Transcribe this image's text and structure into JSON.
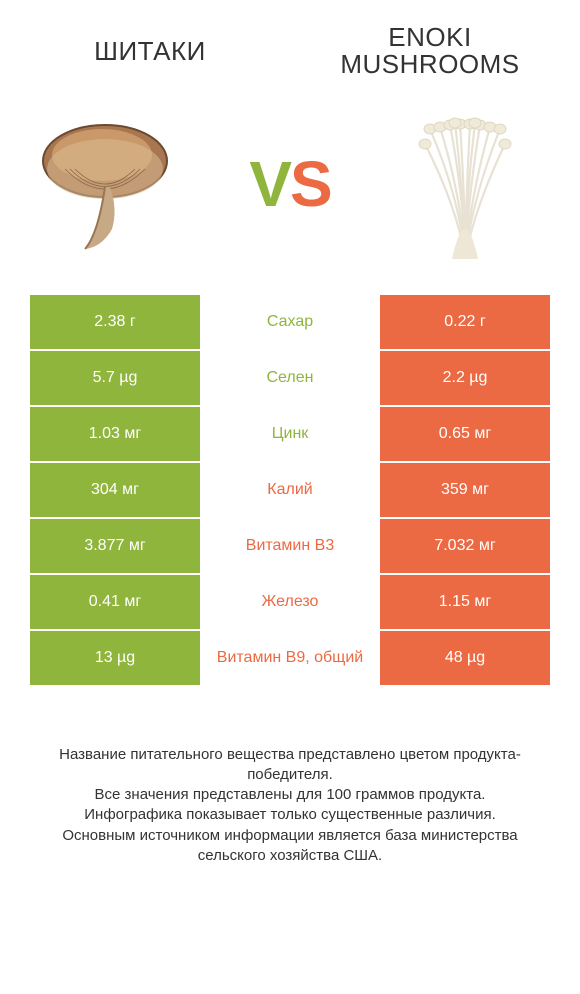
{
  "colors": {
    "left": "#8fb53c",
    "right": "#ec6a43",
    "vs_v": "#8fb53c",
    "vs_s": "#ec6a43",
    "text": "#333333",
    "bg": "#ffffff"
  },
  "titles": {
    "left": "ШИТАКИ",
    "right": "ENOKI MUSHROOMS"
  },
  "vs": {
    "v": "V",
    "s": "S"
  },
  "rows": [
    {
      "left": "2.38 г",
      "label": "Сахар",
      "right": "0.22 г",
      "winner": "left"
    },
    {
      "left": "5.7 µg",
      "label": "Селен",
      "right": "2.2 µg",
      "winner": "left"
    },
    {
      "left": "1.03 мг",
      "label": "Цинк",
      "right": "0.65 мг",
      "winner": "left"
    },
    {
      "left": "304 мг",
      "label": "Калий",
      "right": "359 мг",
      "winner": "right"
    },
    {
      "left": "3.877 мг",
      "label": "Витамин B3",
      "right": "7.032 мг",
      "winner": "right"
    },
    {
      "left": "0.41 мг",
      "label": "Железо",
      "right": "1.15 мг",
      "winner": "right"
    },
    {
      "left": "13 µg",
      "label": "Витамин B9, общий",
      "right": "48 µg",
      "winner": "right"
    }
  ],
  "footer": {
    "l1": "Название питательного вещества представлено цветом продукта-победителя.",
    "l2": "Все значения представлены для 100 граммов продукта.",
    "l3": "Инфографика показывает только существенные различия.",
    "l4": "Основным источником информации является база министерства сельского хозяйства США."
  }
}
